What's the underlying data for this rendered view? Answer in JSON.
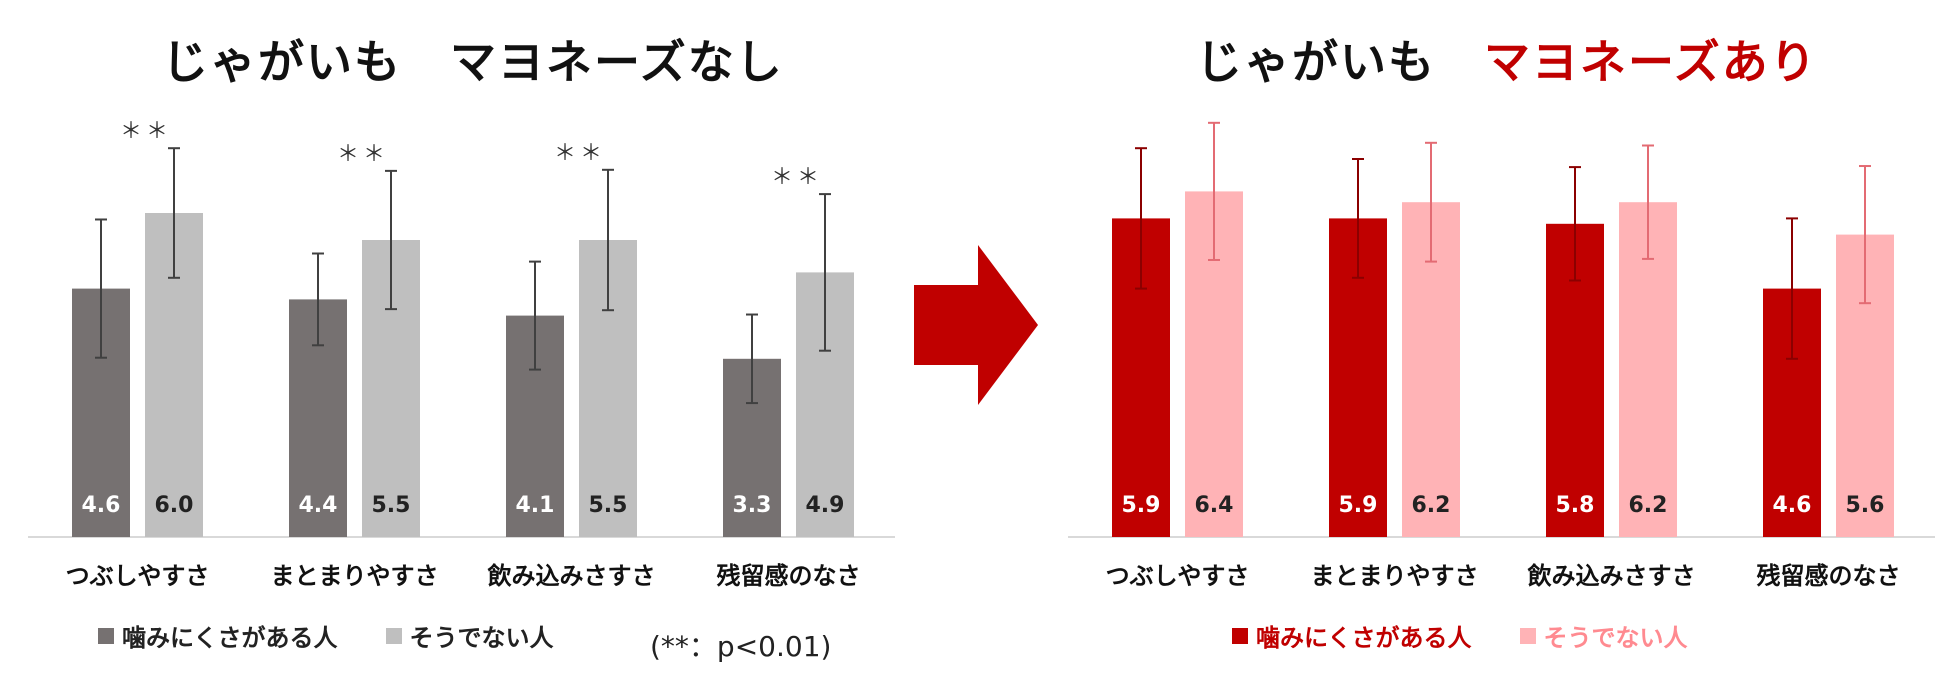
{
  "titles": {
    "left": {
      "prefix": "じゃがいも　",
      "main": "マヨネーズなし"
    },
    "right": {
      "prefix": "じゃがいも　",
      "main": "マヨネーズあり"
    }
  },
  "note": "(**：p<0.01)",
  "colors": {
    "grey_dark": "#767171",
    "grey_light": "#bfbfbf",
    "red_dark": "#c00000",
    "red_light": "#ffb3b6",
    "arrow": "#c00000",
    "title_accent": "#c00000"
  },
  "chart_data": [
    {
      "type": "bar",
      "title": "じゃがいも　マヨネーズなし",
      "categories": [
        "つぶしやすさ",
        "まとまりやすさ",
        "飲み込みさすさ",
        "残留感のなさ"
      ],
      "series": [
        {
          "name": "噛みにくさがある人",
          "values": [
            4.6,
            4.4,
            4.1,
            3.3
          ],
          "error": [
            1.28,
            0.85,
            1.0,
            0.82
          ],
          "color": "#767171"
        },
        {
          "name": "そうでない人",
          "values": [
            6.0,
            5.5,
            5.5,
            4.9
          ],
          "error": [
            1.2,
            1.28,
            1.3,
            1.45
          ],
          "color": "#bfbfbf"
        }
      ],
      "significance": [
        "＊＊",
        "＊＊",
        "＊＊",
        "＊＊"
      ],
      "ylim": [
        0,
        8
      ]
    },
    {
      "type": "bar",
      "title": "じゃがいも　マヨネーズあり",
      "categories": [
        "つぶしやすさ",
        "まとまりやすさ",
        "飲み込みさすさ",
        "残留感のなさ"
      ],
      "series": [
        {
          "name": "噛みにくさがある人",
          "values": [
            5.9,
            5.9,
            5.8,
            4.6
          ],
          "error": [
            1.3,
            1.1,
            1.05,
            1.3
          ],
          "color": "#c00000"
        },
        {
          "name": "そうでない人",
          "values": [
            6.4,
            6.2,
            6.2,
            5.6
          ],
          "error": [
            1.27,
            1.1,
            1.05,
            1.27
          ],
          "color": "#ffb3b6"
        }
      ],
      "ylim": [
        0,
        8
      ]
    }
  ]
}
